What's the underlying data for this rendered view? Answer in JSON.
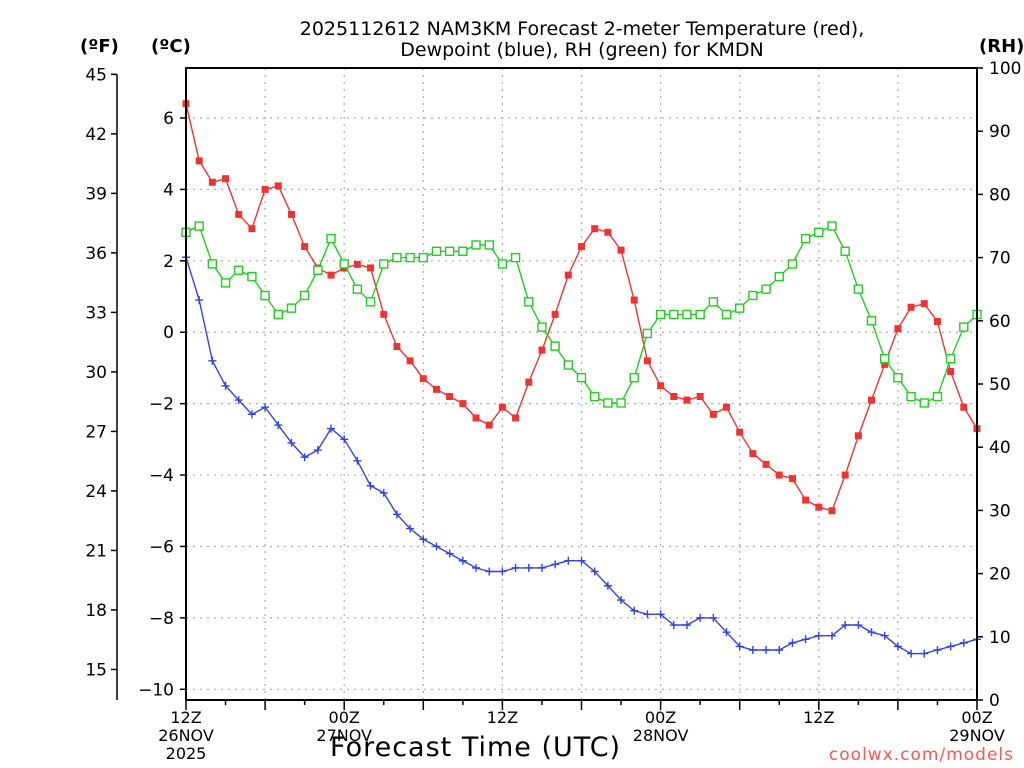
{
  "header": {
    "title_line1": "2025112612 NAM3KM Forecast 2-meter Temperature (red),",
    "title_line2": "Dewpoint (blue), RH (green) for KMDN",
    "unit_f": "(ºF)",
    "unit_c": "(ºC)",
    "unit_rh": "(RH)"
  },
  "footer": {
    "xlabel": "Forecast Time (UTC)",
    "credit": "coolwx.com/models"
  },
  "chart_data": {
    "type": "line",
    "title": "2025112612 NAM3KM Forecast 2-meter Temperature (red), Dewpoint (blue), RH (green) for KMDN",
    "xlabel": "Forecast Time (UTC)",
    "x_unit": "forecast hour",
    "xlim": [
      0,
      60
    ],
    "x_ticks": [
      {
        "hour": 0,
        "lines": [
          "12Z",
          "26NOV",
          "2025"
        ]
      },
      {
        "hour": 12,
        "lines": [
          "00Z",
          "27NOV"
        ]
      },
      {
        "hour": 24,
        "lines": [
          "12Z"
        ]
      },
      {
        "hour": 36,
        "lines": [
          "00Z",
          "28NOV"
        ]
      },
      {
        "hour": 48,
        "lines": [
          "12Z"
        ]
      },
      {
        "hour": 60,
        "lines": [
          "00Z",
          "29NOV"
        ]
      }
    ],
    "y_celsius": {
      "label": "(ºC)",
      "range": [
        -10.3,
        7.4
      ],
      "ticks": [
        6,
        4,
        2,
        0,
        -2,
        -4,
        -6,
        -8,
        -10
      ]
    },
    "y_fahrenheit": {
      "label": "(ºF)",
      "ticks": [
        45,
        42,
        39,
        36,
        33,
        30,
        27,
        24,
        21,
        18,
        15
      ]
    },
    "y_rh": {
      "label": "(RH)",
      "range": [
        0,
        100
      ],
      "ticks": [
        100,
        90,
        80,
        70,
        60,
        50,
        40,
        30,
        20,
        10,
        0
      ]
    },
    "grid": true,
    "series": [
      {
        "name": "Temperature",
        "unit": "°C",
        "color": "#ee3333",
        "marker": "filled-square",
        "values": [
          6.4,
          4.8,
          4.2,
          4.3,
          3.3,
          2.9,
          4.0,
          4.1,
          3.3,
          2.4,
          1.8,
          1.6,
          1.8,
          1.9,
          1.8,
          0.5,
          -0.4,
          -0.8,
          -1.3,
          -1.6,
          -1.8,
          -2.0,
          -2.4,
          -2.6,
          -2.1,
          -2.4,
          -1.4,
          -0.5,
          0.5,
          1.6,
          2.4,
          2.9,
          2.8,
          2.3,
          0.9,
          -0.8,
          -1.5,
          -1.8,
          -1.9,
          -1.8,
          -2.3,
          -2.1,
          -2.8,
          -3.4,
          -3.7,
          -4.0,
          -4.1,
          -4.7,
          -4.9,
          -5.0,
          -4.0,
          -2.9,
          -1.9,
          -0.9,
          0.1,
          0.7,
          0.8,
          0.3,
          -1.1,
          -2.1,
          -2.7
        ]
      },
      {
        "name": "Dewpoint",
        "unit": "°C",
        "color": "#3344dd",
        "marker": "plus",
        "values": [
          2.1,
          0.9,
          -0.8,
          -1.5,
          -1.9,
          -2.3,
          -2.1,
          -2.6,
          -3.1,
          -3.5,
          -3.3,
          -2.7,
          -3.0,
          -3.6,
          -4.3,
          -4.5,
          -5.1,
          -5.5,
          -5.8,
          -6.0,
          -6.2,
          -6.4,
          -6.6,
          -6.7,
          -6.7,
          -6.6,
          -6.6,
          -6.6,
          -6.5,
          -6.4,
          -6.4,
          -6.7,
          -7.1,
          -7.5,
          -7.8,
          -7.9,
          -7.9,
          -8.2,
          -8.2,
          -8.0,
          -8.0,
          -8.4,
          -8.8,
          -8.9,
          -8.9,
          -8.9,
          -8.7,
          -8.6,
          -8.5,
          -8.5,
          -8.2,
          -8.2,
          -8.4,
          -8.5,
          -8.8,
          -9.0,
          -9.0,
          -8.9,
          -8.8,
          -8.7,
          -8.6
        ]
      },
      {
        "name": "RH",
        "unit": "%",
        "color": "#22cc22",
        "marker": "open-square",
        "values": [
          74,
          75,
          69,
          66,
          68,
          67,
          64,
          61,
          62,
          64,
          68,
          73,
          69,
          65,
          63,
          69,
          70,
          70,
          70,
          71,
          71,
          71,
          72,
          72,
          69,
          70,
          63,
          59,
          56,
          53,
          51,
          48,
          47,
          47,
          51,
          58,
          61,
          61,
          61,
          61,
          63,
          61,
          62,
          64,
          65,
          67,
          69,
          73,
          74,
          75,
          71,
          65,
          60,
          54,
          51,
          48,
          47,
          48,
          54,
          59,
          61
        ]
      }
    ]
  }
}
